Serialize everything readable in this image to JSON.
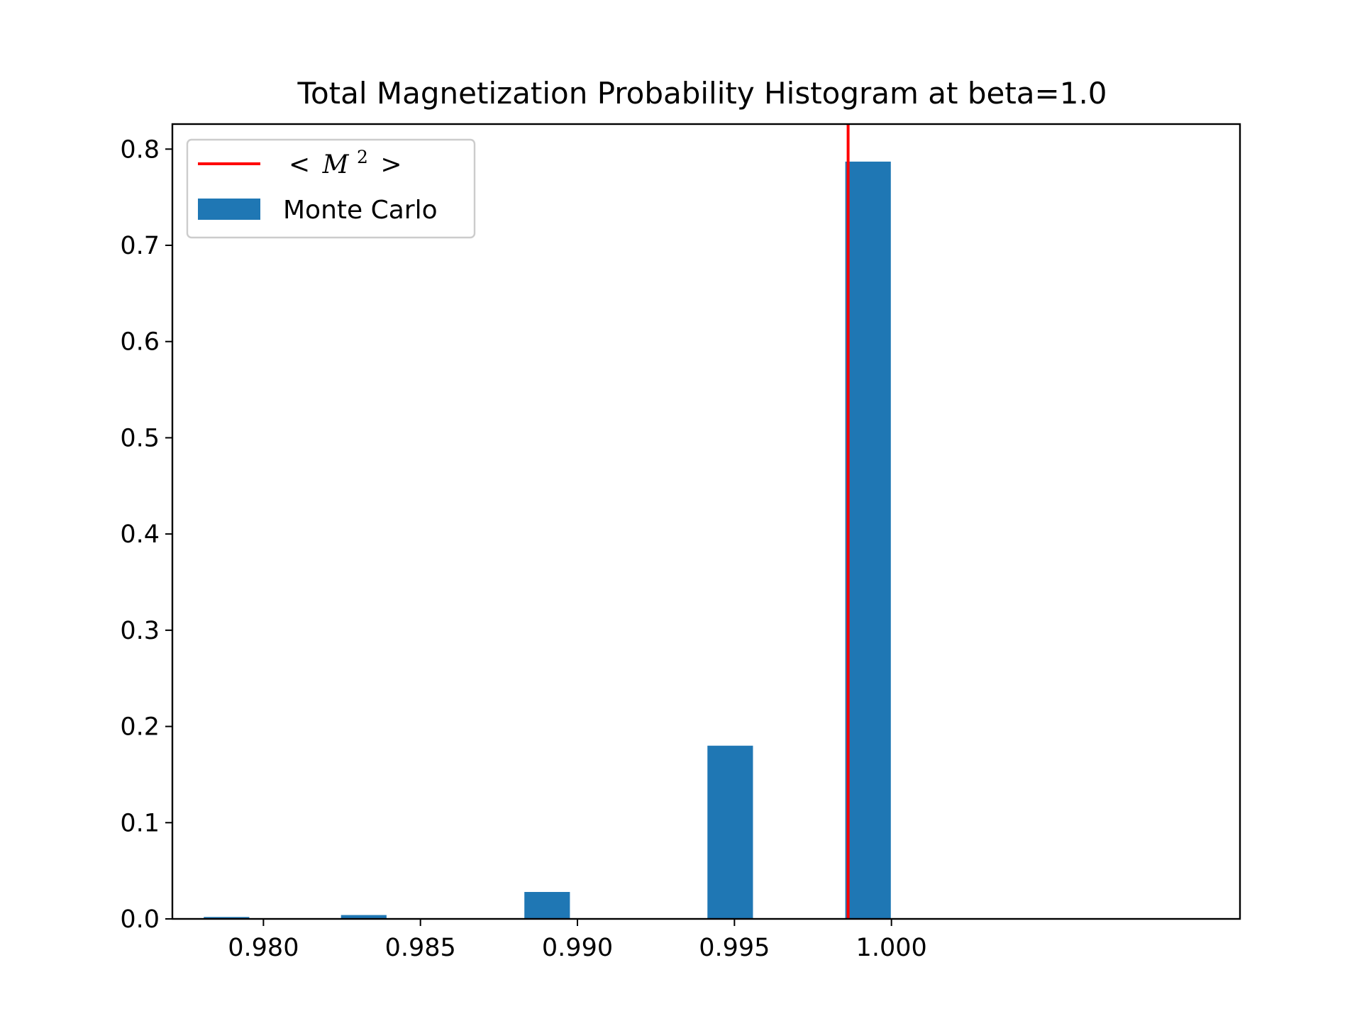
{
  "chart_data": {
    "type": "bar",
    "title": "Total Magnetization Probability Histogram at beta=1.0",
    "xlabel": "",
    "ylabel": "",
    "xlim": [
      0.9771,
      1.0111
    ],
    "ylim": [
      0.0,
      0.826
    ],
    "grid": false,
    "legend_placement": "top-left",
    "x_ticks": [
      {
        "value": 0.98,
        "label": "0.980"
      },
      {
        "value": 0.985,
        "label": "0.985"
      },
      {
        "value": 0.99,
        "label": "0.990"
      },
      {
        "value": 0.995,
        "label": "0.995"
      },
      {
        "value": 1.0,
        "label": "1.000"
      }
    ],
    "y_ticks": [
      {
        "value": 0.0,
        "label": "0.0"
      },
      {
        "value": 0.1,
        "label": "0.1"
      },
      {
        "value": 0.2,
        "label": "0.2"
      },
      {
        "value": 0.3,
        "label": "0.3"
      },
      {
        "value": 0.4,
        "label": "0.4"
      },
      {
        "value": 0.5,
        "label": "0.5"
      },
      {
        "value": 0.6,
        "label": "0.6"
      },
      {
        "value": 0.7,
        "label": "0.7"
      },
      {
        "value": 0.8,
        "label": "0.8"
      }
    ],
    "bars": [
      {
        "x_start": 0.9781,
        "x_end": 0.97955,
        "value": 0.002
      },
      {
        "x_start": 0.98247,
        "x_end": 0.98392,
        "value": 0.004
      },
      {
        "x_start": 0.98831,
        "x_end": 0.98976,
        "value": 0.028
      },
      {
        "x_start": 0.99414,
        "x_end": 0.99559,
        "value": 0.18
      },
      {
        "x_start": 0.99853,
        "x_end": 0.99998,
        "value": 0.787
      }
    ],
    "vline": {
      "x": 0.99862,
      "color": "#ff0000"
    },
    "series": [
      {
        "name": "Monte Carlo",
        "color": "#1f77b4"
      }
    ],
    "legend": {
      "line_label_prefix": "<",
      "line_label_var": "M",
      "line_label_sup": "2",
      "line_label_suffix": ">",
      "bar_label": "Monte Carlo"
    }
  }
}
